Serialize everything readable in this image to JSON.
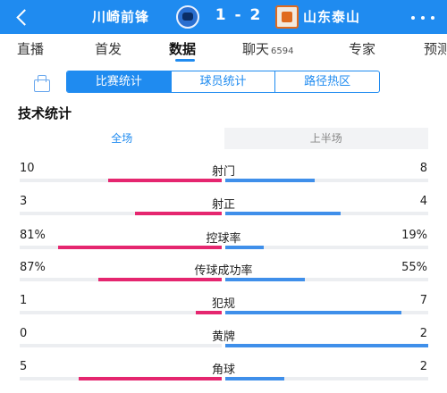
{
  "header": {
    "home_team": "川崎前锋",
    "away_team": "山东泰山",
    "score": "1 - 2"
  },
  "tabs": [
    {
      "label": "直播"
    },
    {
      "label": "首发"
    },
    {
      "label": "数据",
      "active": true
    },
    {
      "label": "聊天",
      "count": "6594"
    },
    {
      "label": "专家"
    },
    {
      "label": "预测"
    }
  ],
  "subtabs": [
    {
      "label": "比赛统计",
      "active": true
    },
    {
      "label": "球员统计"
    },
    {
      "label": "路径热区"
    }
  ],
  "section_title": "技术统计",
  "period": {
    "full": "全场",
    "first_half": "上半场",
    "selected": "全场"
  },
  "stats": [
    {
      "name": "射门",
      "home": "10",
      "away": "8",
      "home_ratio": 0.56,
      "away_ratio": 0.44
    },
    {
      "name": "射正",
      "home": "3",
      "away": "4",
      "home_ratio": 0.43,
      "away_ratio": 0.57
    },
    {
      "name": "控球率",
      "home": "81%",
      "away": "19%",
      "home_ratio": 0.81,
      "away_ratio": 0.19
    },
    {
      "name": "传球成功率",
      "home": "87%",
      "away": "55%",
      "home_ratio": 0.61,
      "away_ratio": 0.39
    },
    {
      "name": "犯规",
      "home": "1",
      "away": "7",
      "home_ratio": 0.13,
      "away_ratio": 0.87
    },
    {
      "name": "黄牌",
      "home": "0",
      "away": "2",
      "home_ratio": 0.0,
      "away_ratio": 1.0
    },
    {
      "name": "角球",
      "home": "5",
      "away": "2",
      "home_ratio": 0.71,
      "away_ratio": 0.29
    }
  ],
  "colors": {
    "accent": "#1f8bf0",
    "home_bar": "#e5266f",
    "away_bar": "#3f8fea"
  }
}
